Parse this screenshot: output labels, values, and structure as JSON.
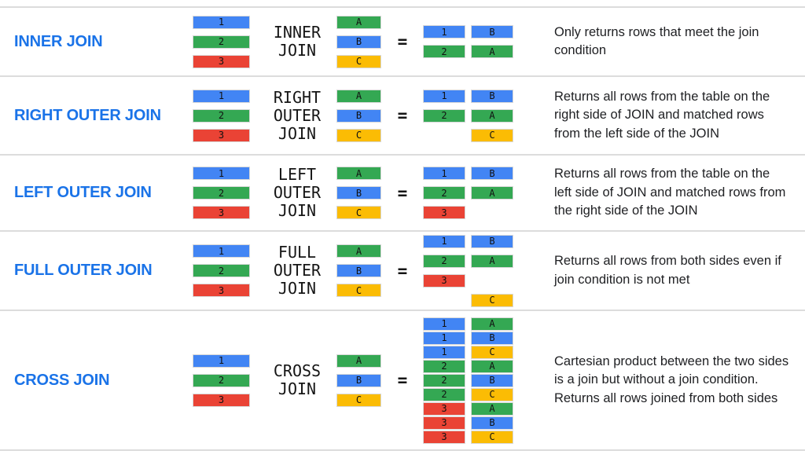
{
  "equals_sign": "=",
  "colors": {
    "blue": "#4285F4",
    "green": "#34A853",
    "red": "#EA4335",
    "yellow": "#FBBC04",
    "title_blue": "#1A73E8",
    "divider": "#DCDCDC",
    "text": "#202124"
  },
  "rows": [
    {
      "title": "INNER JOIN",
      "join_label": [
        "INNER",
        "JOIN"
      ],
      "left_table": [
        {
          "label": "1",
          "color": "blue"
        },
        {
          "label": "2",
          "color": "green"
        },
        {
          "label": "3",
          "color": "red"
        }
      ],
      "right_table": [
        {
          "label": "A",
          "color": "green"
        },
        {
          "label": "B",
          "color": "blue"
        },
        {
          "label": "C",
          "color": "yellow"
        }
      ],
      "result_col1": [
        {
          "label": "1",
          "color": "blue"
        },
        {
          "label": "2",
          "color": "green"
        }
      ],
      "result_col2": [
        {
          "label": "B",
          "color": "blue"
        },
        {
          "label": "A",
          "color": "green"
        }
      ],
      "compact_result": false,
      "description": "Only returns rows that meet the join condition"
    },
    {
      "title": "RIGHT OUTER JOIN",
      "join_label": [
        "RIGHT",
        "OUTER",
        "JOIN"
      ],
      "left_table": [
        {
          "label": "1",
          "color": "blue"
        },
        {
          "label": "2",
          "color": "green"
        },
        {
          "label": "3",
          "color": "red"
        }
      ],
      "right_table": [
        {
          "label": "A",
          "color": "green"
        },
        {
          "label": "B",
          "color": "blue"
        },
        {
          "label": "C",
          "color": "yellow"
        }
      ],
      "result_col1": [
        {
          "label": "1",
          "color": "blue"
        },
        {
          "label": "2",
          "color": "green"
        },
        null
      ],
      "result_col2": [
        {
          "label": "B",
          "color": "blue"
        },
        {
          "label": "A",
          "color": "green"
        },
        {
          "label": "C",
          "color": "yellow"
        }
      ],
      "compact_result": false,
      "description": "Returns all rows from the table on the right side of JOIN and matched rows from the left side of the JOIN"
    },
    {
      "title": "LEFT OUTER JOIN",
      "join_label": [
        "LEFT",
        "OUTER",
        "JOIN"
      ],
      "left_table": [
        {
          "label": "1",
          "color": "blue"
        },
        {
          "label": "2",
          "color": "green"
        },
        {
          "label": "3",
          "color": "red"
        }
      ],
      "right_table": [
        {
          "label": "A",
          "color": "green"
        },
        {
          "label": "B",
          "color": "blue"
        },
        {
          "label": "C",
          "color": "yellow"
        }
      ],
      "result_col1": [
        {
          "label": "1",
          "color": "blue"
        },
        {
          "label": "2",
          "color": "green"
        },
        {
          "label": "3",
          "color": "red"
        }
      ],
      "result_col2": [
        {
          "label": "B",
          "color": "blue"
        },
        {
          "label": "A",
          "color": "green"
        },
        null
      ],
      "compact_result": false,
      "description": "Returns all rows from the table on the left side of JOIN and matched rows from the right side of the JOIN"
    },
    {
      "title": "FULL OUTER JOIN",
      "join_label": [
        "FULL",
        "OUTER",
        "JOIN"
      ],
      "left_table": [
        {
          "label": "1",
          "color": "blue"
        },
        {
          "label": "2",
          "color": "green"
        },
        {
          "label": "3",
          "color": "red"
        }
      ],
      "right_table": [
        {
          "label": "A",
          "color": "green"
        },
        {
          "label": "B",
          "color": "blue"
        },
        {
          "label": "C",
          "color": "yellow"
        }
      ],
      "result_col1": [
        {
          "label": "1",
          "color": "blue"
        },
        {
          "label": "2",
          "color": "green"
        },
        {
          "label": "3",
          "color": "red"
        },
        null
      ],
      "result_col2": [
        {
          "label": "B",
          "color": "blue"
        },
        {
          "label": "A",
          "color": "green"
        },
        null,
        {
          "label": "C",
          "color": "yellow"
        }
      ],
      "compact_result": false,
      "description": "Returns all rows from both sides even if join condition is not met"
    },
    {
      "title": "CROSS JOIN",
      "join_label": [
        "CROSS",
        "JOIN"
      ],
      "left_table": [
        {
          "label": "1",
          "color": "blue"
        },
        {
          "label": "2",
          "color": "green"
        },
        {
          "label": "3",
          "color": "red"
        }
      ],
      "right_table": [
        {
          "label": "A",
          "color": "green"
        },
        {
          "label": "B",
          "color": "blue"
        },
        {
          "label": "C",
          "color": "yellow"
        }
      ],
      "result_col1": [
        {
          "label": "1",
          "color": "blue"
        },
        {
          "label": "1",
          "color": "blue"
        },
        {
          "label": "1",
          "color": "blue"
        },
        {
          "label": "2",
          "color": "green"
        },
        {
          "label": "2",
          "color": "green"
        },
        {
          "label": "2",
          "color": "green"
        },
        {
          "label": "3",
          "color": "red"
        },
        {
          "label": "3",
          "color": "red"
        },
        {
          "label": "3",
          "color": "red"
        }
      ],
      "result_col2": [
        {
          "label": "A",
          "color": "green"
        },
        {
          "label": "B",
          "color": "blue"
        },
        {
          "label": "C",
          "color": "yellow"
        },
        {
          "label": "A",
          "color": "green"
        },
        {
          "label": "B",
          "color": "blue"
        },
        {
          "label": "C",
          "color": "yellow"
        },
        {
          "label": "A",
          "color": "green"
        },
        {
          "label": "B",
          "color": "blue"
        },
        {
          "label": "C",
          "color": "yellow"
        }
      ],
      "compact_result": true,
      "description": "Cartesian product between the two sides is a join but without a join condition. Returns all rows joined from both sides"
    }
  ]
}
